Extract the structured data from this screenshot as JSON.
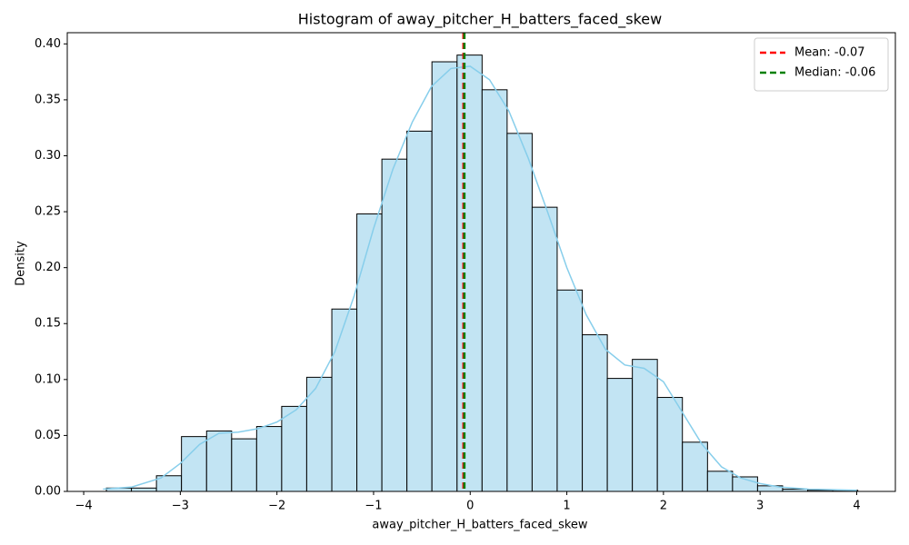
{
  "chart_data": {
    "type": "histogram",
    "title": "Histogram of away_pitcher_H_batters_faced_skew",
    "xlabel": "away_pitcher_H_batters_faced_skew",
    "ylabel": "Density",
    "color": "#c2e4f3",
    "edgecolor": "#000000",
    "bins": [
      -3.765,
      -3.506,
      -3.247,
      -2.988,
      -2.728,
      -2.469,
      -2.21,
      -1.951,
      -1.692,
      -1.432,
      -1.173,
      -0.914,
      -0.655,
      -0.396,
      -0.136,
      0.123,
      0.382,
      0.641,
      0.9,
      1.16,
      1.419,
      1.678,
      1.937,
      2.196,
      2.456,
      2.715,
      2.974,
      3.233,
      3.492,
      3.752,
      4.011
    ],
    "values": [
      0.003,
      0.003,
      0.014,
      0.049,
      0.054,
      0.047,
      0.058,
      0.076,
      0.102,
      0.163,
      0.248,
      0.297,
      0.322,
      0.384,
      0.39,
      0.359,
      0.32,
      0.254,
      0.18,
      0.14,
      0.101,
      0.118,
      0.084,
      0.044,
      0.018,
      0.013,
      0.005,
      0.002,
      0.001,
      0.001
    ],
    "kde": {
      "color": "#87ceeb",
      "x": [
        -3.8,
        -3.5,
        -3.2,
        -3.0,
        -2.8,
        -2.6,
        -2.4,
        -2.2,
        -2.0,
        -1.8,
        -1.6,
        -1.4,
        -1.2,
        -1.0,
        -0.8,
        -0.6,
        -0.4,
        -0.2,
        0.0,
        0.2,
        0.4,
        0.6,
        0.8,
        1.0,
        1.2,
        1.4,
        1.6,
        1.8,
        2.0,
        2.2,
        2.4,
        2.6,
        2.8,
        3.0,
        3.2,
        3.5,
        4.0
      ],
      "values": [
        0.002,
        0.004,
        0.012,
        0.025,
        0.042,
        0.052,
        0.053,
        0.056,
        0.062,
        0.073,
        0.092,
        0.125,
        0.175,
        0.235,
        0.288,
        0.33,
        0.362,
        0.378,
        0.38,
        0.368,
        0.34,
        0.298,
        0.25,
        0.2,
        0.158,
        0.127,
        0.113,
        0.11,
        0.098,
        0.07,
        0.042,
        0.022,
        0.012,
        0.007,
        0.004,
        0.002,
        0.001
      ]
    },
    "lines": [
      {
        "name": "Mean: -0.07",
        "value": -0.07,
        "color": "#ff0000"
      },
      {
        "name": "Median: -0.06",
        "value": -0.06,
        "color": "#008000"
      }
    ],
    "legend": "upper right",
    "xlim": [
      -4.17,
      4.4
    ],
    "ylim": [
      0,
      0.41
    ],
    "xticks": [
      {
        "value": -4,
        "label": "−4"
      },
      {
        "value": -3,
        "label": "−3"
      },
      {
        "value": -2,
        "label": "−2"
      },
      {
        "value": -1,
        "label": "−1"
      },
      0,
      1,
      2,
      3,
      4
    ],
    "yticks": [
      {
        "value": 0,
        "label": "0.00"
      },
      {
        "value": 0.05,
        "label": "0.05"
      },
      {
        "value": 0.1,
        "label": "0.10"
      },
      {
        "value": 0.15,
        "label": "0.15"
      },
      {
        "value": 0.2,
        "label": "0.20"
      },
      {
        "value": 0.25,
        "label": "0.25"
      },
      {
        "value": 0.3,
        "label": "0.30"
      },
      {
        "value": 0.35,
        "label": "0.35"
      },
      {
        "value": 0.4,
        "label": "0.40"
      }
    ]
  }
}
